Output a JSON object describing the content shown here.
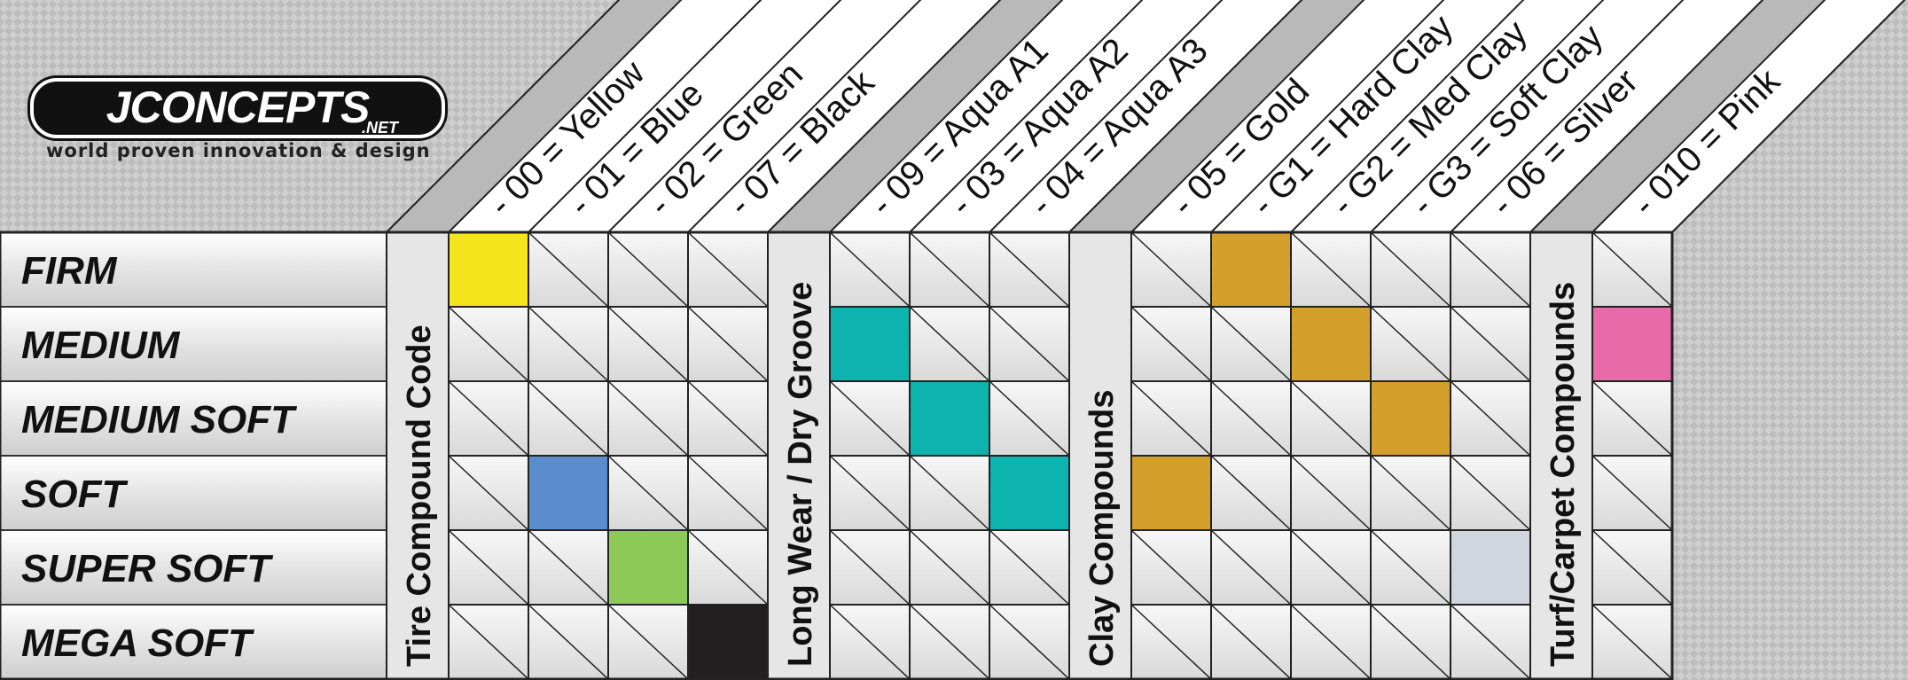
{
  "brand": {
    "name": "JCONCEPTS",
    "domain": ".NET",
    "tagline": "world proven innovation & design"
  },
  "compounds": [
    "FIRM",
    "MEDIUM",
    "MEDIUM SOFT",
    "SOFT",
    "SUPER SOFT",
    "MEGA SOFT"
  ],
  "groups": [
    {
      "title": "Tire Compound Code",
      "columns": [
        {
          "code": "- 00 = Yellow",
          "color": "#f5e51c",
          "row": 0
        },
        {
          "code": "- 01 = Blue",
          "color": "#5b8dce",
          "row": 3
        },
        {
          "code": "- 02 = Green",
          "color": "#8dc957",
          "row": 4
        },
        {
          "code": "- 07 = Black",
          "color": "#231f20",
          "row": 5
        }
      ]
    },
    {
      "title": "Long Wear / Dry Groove",
      "columns": [
        {
          "code": "- 09 = Aqua A1",
          "color": "#0db3ae",
          "row": 1
        },
        {
          "code": "- 03 = Aqua A2",
          "color": "#0db3ae",
          "row": 2
        },
        {
          "code": "- 04 = Aqua A3",
          "color": "#0db3ae",
          "row": 3
        }
      ]
    },
    {
      "title": "Clay Compounds",
      "columns": [
        {
          "code": "- 05 = Gold",
          "color": "#d49f2b",
          "row": 3
        },
        {
          "code": "- G1 = Hard Clay",
          "color": "#d49f2b",
          "row": 0
        },
        {
          "code": "- G2 = Med Clay",
          "color": "#d49f2b",
          "row": 1
        },
        {
          "code": "- G3 = Soft Clay",
          "color": "#d49f2b",
          "row": 2
        },
        {
          "code": "- 06 = Silver",
          "color": "#cfd6dd",
          "row": 4
        }
      ]
    },
    {
      "title": "Turf/Carpet Compounds",
      "columns": [
        {
          "code": "- 010 = Pink",
          "color": "#e86aa8",
          "row": 1
        }
      ]
    }
  ]
}
